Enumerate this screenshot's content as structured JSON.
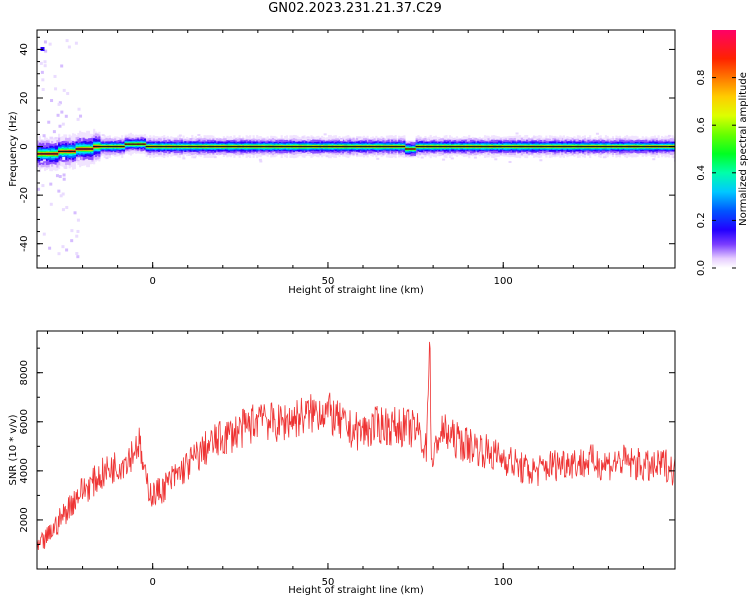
{
  "title": "GN02.2023.231.21.37.C29",
  "colors": {
    "snr_line": "#ee3333",
    "axis": "#000000",
    "background": "#ffffff"
  },
  "chart_data": [
    {
      "type": "heatmap",
      "xlabel": "Height of straight line (km)",
      "ylabel": "Frequency (Hz)",
      "xlim": [
        -33,
        149
      ],
      "ylim": [
        -50,
        48
      ],
      "x_ticks": [
        "0",
        "50",
        "100"
      ],
      "y_ticks": [
        "40",
        "20",
        "0",
        "-20",
        "-40"
      ],
      "colorbar": {
        "label": "Normalized spectral amplitude",
        "range": [
          0.0,
          1.0
        ],
        "ticks": [
          "0.0",
          "0.2",
          "0.4",
          "0.6",
          "0.8"
        ]
      },
      "ridge": {
        "segments": [
          {
            "x0": -33,
            "x1": -27,
            "freq": -3
          },
          {
            "x0": -27,
            "x1": -22,
            "freq": -2
          },
          {
            "x0": -22,
            "x1": -17,
            "freq": -1
          },
          {
            "x0": -17,
            "x1": -8,
            "freq": 0
          },
          {
            "x0": -8,
            "x1": -2,
            "freq": 1
          },
          {
            "x0": -2,
            "x1": 72,
            "freq": 0
          },
          {
            "x0": 72,
            "x1": 75,
            "freq": -1
          },
          {
            "x0": 75,
            "x1": 149,
            "freq": 0
          }
        ],
        "peak_amplitude": 1.0
      }
    },
    {
      "type": "line",
      "xlabel": "Height of straight line (km)",
      "ylabel": "SNR (10 * v/v)",
      "xlim": [
        -33,
        149
      ],
      "ylim": [
        0,
        9700
      ],
      "x_ticks": [
        "0",
        "50",
        "100"
      ],
      "y_ticks": [
        "2000",
        "4000",
        "6000",
        "8000"
      ],
      "series": [
        {
          "x": [
            -33,
            -30,
            -27,
            -24,
            -21,
            -18,
            -15,
            -12,
            -9,
            -6,
            -4,
            -2,
            0,
            3,
            6,
            9,
            12,
            15,
            18,
            21,
            24,
            27,
            30,
            31,
            33,
            36,
            39,
            42,
            45,
            48,
            50,
            53,
            56,
            59,
            62,
            65,
            68,
            71,
            74,
            76,
            78,
            79,
            79.5,
            80,
            81,
            83,
            86,
            89,
            92,
            95,
            98,
            101,
            104,
            107,
            110,
            113,
            116,
            119,
            122,
            125,
            128,
            131,
            134,
            137,
            140,
            143,
            146,
            149
          ],
          "y": [
            800,
            1300,
            1900,
            2500,
            3100,
            3400,
            3800,
            4100,
            4300,
            4700,
            5200,
            3600,
            3000,
            3300,
            3700,
            4100,
            4500,
            4900,
            5200,
            5400,
            5600,
            5800,
            6100,
            6700,
            6000,
            5900,
            6100,
            6200,
            6300,
            6500,
            6400,
            6000,
            5700,
            5600,
            5700,
            5900,
            5800,
            5800,
            5700,
            5600,
            4800,
            9500,
            5000,
            4000,
            5300,
            5600,
            5300,
            5100,
            5000,
            4800,
            4600,
            4500,
            4200,
            4000,
            4000,
            4200,
            4300,
            4400,
            4300,
            4400,
            4300,
            4300,
            4400,
            4300,
            4200,
            4100,
            4300,
            4000
          ]
        }
      ]
    }
  ]
}
